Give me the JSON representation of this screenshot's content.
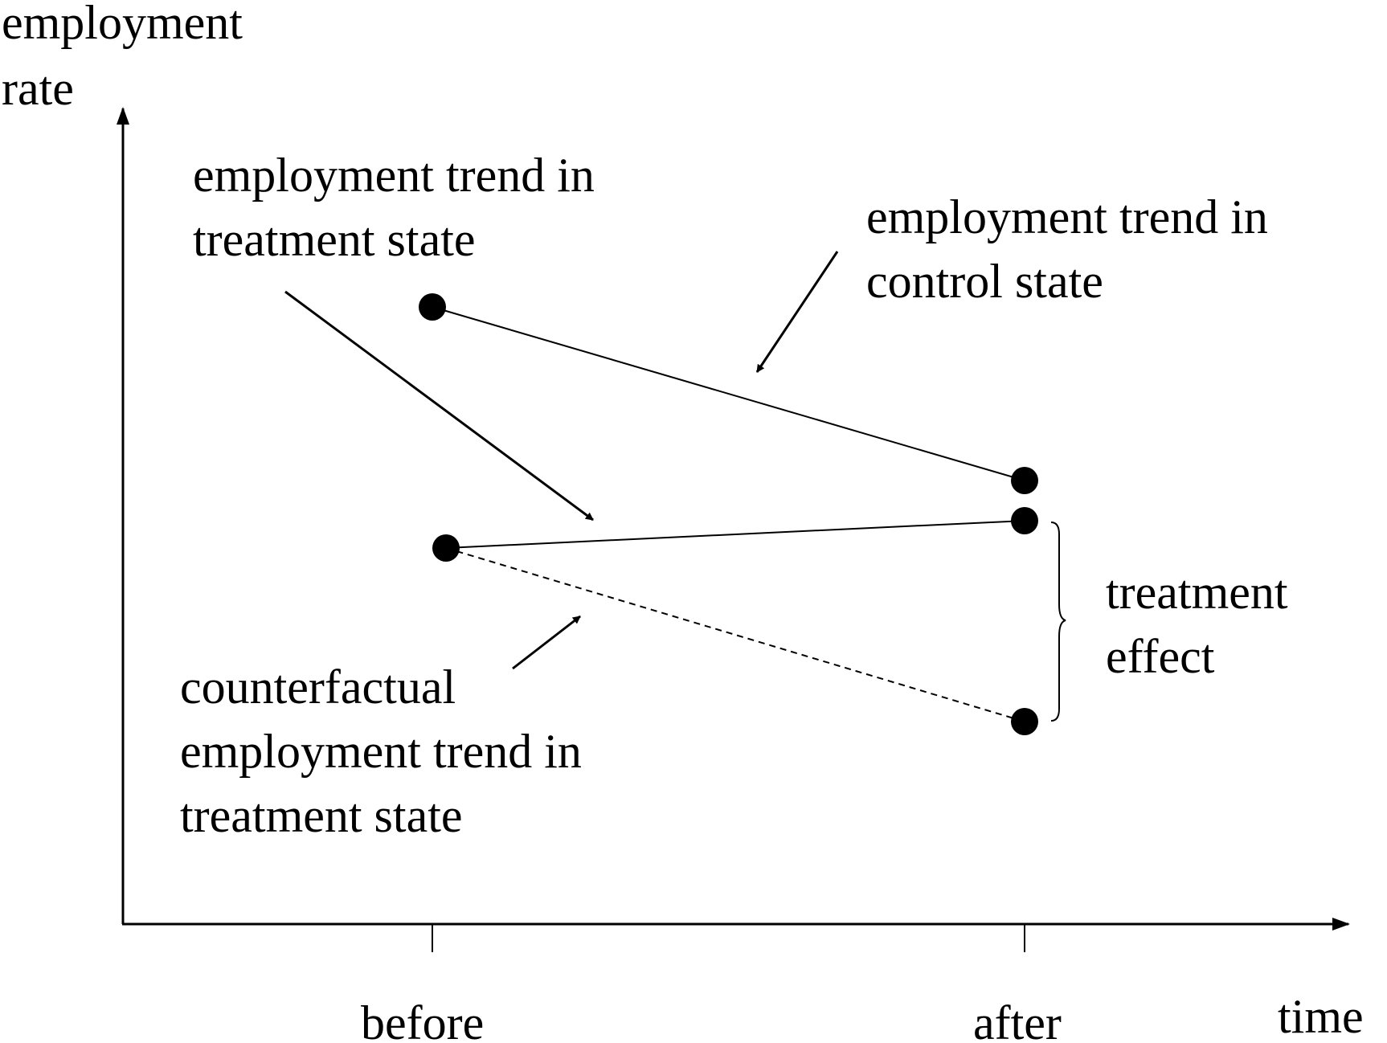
{
  "axes": {
    "y_label_lines": [
      "employment",
      "rate"
    ],
    "x_label": "time",
    "x_ticks": [
      "before",
      "after"
    ]
  },
  "annotations": {
    "treatment_trend_lines": [
      "employment trend in",
      "treatment state"
    ],
    "control_trend_lines": [
      "employment trend in",
      "control state"
    ],
    "counterfactual_trend_lines": [
      "counterfactual",
      "employment trend in",
      "treatment state"
    ],
    "treatment_effect_lines": [
      "treatment",
      "effect"
    ]
  },
  "colors": {
    "ink": "#000000",
    "background": "#ffffff"
  }
}
